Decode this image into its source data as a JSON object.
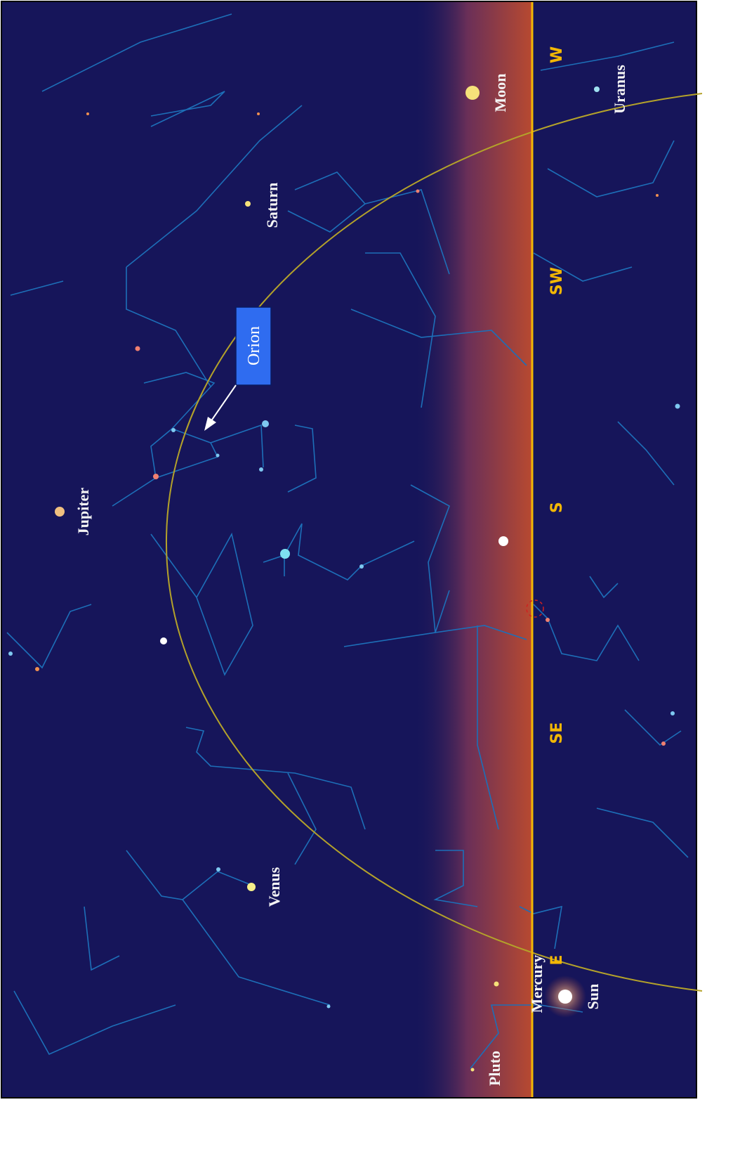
{
  "compass_points": [
    "W",
    "SW",
    "S",
    "SE",
    "E"
  ],
  "object_labels": [
    "Moon",
    "Uranus",
    "Saturn",
    "Jupiter",
    "Venus",
    "Mercury",
    "Sun",
    "Pluto"
  ],
  "callout": {
    "label": "Orion"
  }
}
